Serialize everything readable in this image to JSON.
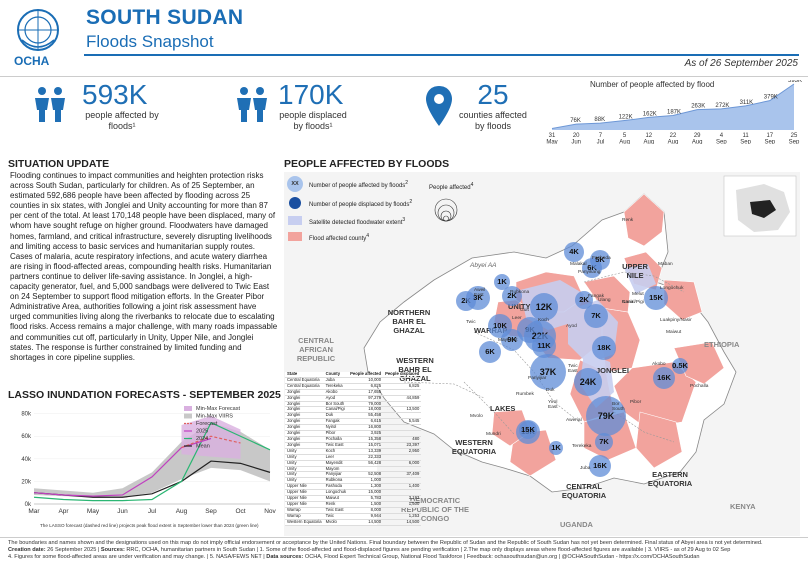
{
  "header": {
    "title": "SOUTH SUDAN",
    "subtitle": "Floods Snapshot",
    "date": "As of 26 September 2025",
    "logo_text": "OCHA"
  },
  "kpis": [
    {
      "value": "593K",
      "label": "people affected by floods¹",
      "icon": "people-icon"
    },
    {
      "value": "170K",
      "label": "people displaced by floods¹",
      "icon": "people-icon"
    },
    {
      "value": "25",
      "label": "counties affected by floods",
      "icon": "map-pin-icon"
    }
  ],
  "trend": {
    "title": "Number of people affected by flood",
    "dates": [
      "31 May",
      "20 Jun",
      "7 Jul",
      "5 Aug",
      "12 Aug",
      "22 Aug",
      "29 Aug",
      "4 Sep",
      "11 Sep",
      "17 Sep",
      "25 Sep"
    ],
    "labels": [
      "",
      "76K",
      "88K",
      "122K",
      "162K",
      "187K",
      "263K",
      "272K",
      "311K",
      "379K",
      "593K"
    ],
    "values": [
      20,
      76,
      88,
      122,
      162,
      187,
      263,
      272,
      311,
      379,
      593
    ]
  },
  "situation": {
    "title": "SITUATION UPDATE",
    "text": "Flooding continues to impact communities and heighten protection risks across South Sudan, particularly for children. As of 25 September, an estimated 592,686 people have been affected by flooding across 25 counties in six states, with Jonglei and Unity accounting for more than 87 per cent of the total. At least 170,148 people have been displaced, many of whom have sought refuge on higher ground. Floodwaters have damaged homes, farmland, and critical infrastructure, severely disrupting livelihoods and limiting access to basic services and humanitarian supply routes. Cases of malaria, acute respiratory infections, and acute watery diarrhea are rising in flood-affected areas, compounding health risks. Humanitarian partners continue to deliver life-saving assistance. In Jonglei, a high-capacity generator, fuel, and 5,000 sandbags were delivered to Twic East on 24 September to support flood mitigation efforts. In the Greater Pibor Administrative Area, authorities following a joint risk assessment have urged communities living along the riverbanks to relocate due to escalating flood risks. Access remains a major challenge, with many roads impassable and communities cut off, particularly in Unity, Upper Nile, and Jonglei states. The response is further constrained by limited funding and shortages in core pipeline supplies."
  },
  "lasso": {
    "title": "LASSO INUNDATION FORECASTS - SEPTEMBER 2025",
    "legend": [
      "Min-Max Forecast",
      "Min-Max VIIRS",
      "Forecast",
      "2025",
      "2024",
      "Mean"
    ],
    "months": [
      "Mar",
      "Apr",
      "May",
      "Jun",
      "Jul",
      "Aug",
      "Sep",
      "Oct",
      "Nov"
    ],
    "yticks": [
      "0k",
      "20k",
      "40k",
      "60k",
      "80k"
    ],
    "note": "The LASSO forecast (dashed red line) projects peak flood extent in September lower than 2024 (green line)",
    "colors": {
      "forecast": "#e06060",
      "y2025": "#c040c0",
      "y2024": "#2bb673",
      "mean": "#222222",
      "viirs": "#c8c8c8",
      "fcband": "#d9b0e0"
    }
  },
  "map": {
    "title": "PEOPLE AFFECTED BY FLOODS",
    "legend": {
      "affected": "Number of people affected by floods",
      "affected_sup": "2",
      "displaced": "Number of people displaced by floods",
      "displaced_sup": "2",
      "satellite": "Satellite detected floodwater extent",
      "satellite_sup": "3",
      "county": "Flood affected county",
      "county_sup": "4",
      "sizes": "People affected",
      "sizes_sup": "4",
      "bubble": "XX"
    },
    "countries": [
      "CENTRAL AFRICAN REPUBLIC",
      "ETHIOPIA",
      "DEMOCRATIC REPUBLIC OF THE CONGO",
      "UGANDA",
      "KENYA",
      "Abyei AA"
    ],
    "states": [
      "NORTHERN BAHR EL GHAZAL",
      "WESTERN BAHR EL GHAZAL",
      "WARRAP",
      "UNITY",
      "UPPER NILE",
      "JONGLEI",
      "LAKES",
      "WESTERN EQUATORIA",
      "CENTRAL EQUATORIA",
      "EASTERN EQUATORIA"
    ],
    "bubbles": [
      "2K",
      "3K",
      "2K",
      "12K",
      "1K",
      "4K",
      "10K",
      "9K",
      "6K",
      "7K",
      "22K",
      "37K",
      "9K",
      "11K",
      "15K",
      "0.5K",
      "16K",
      "79K",
      "15K",
      "16K",
      "7K",
      "15K",
      "6K",
      "5K",
      "2K",
      "18K",
      "24K",
      "1K"
    ],
    "places": [
      "Renk",
      "Maban",
      "Melut",
      "Longochuk",
      "Maiwut",
      "Nasir",
      "Ulang",
      "Akobo",
      "Pochalla",
      "Pibor",
      "Bor South",
      "Terekeka",
      "Juba",
      "Rubkona",
      "Guit",
      "Fangak",
      "Canal/Pigi",
      "Twic East",
      "Duk",
      "Ayod",
      "Leer",
      "Panyijiar",
      "Mayendit",
      "Koch",
      "Twic",
      "Aweil East",
      "Malakal",
      "Fashoda",
      "Panyikang",
      "Luakpiny/Nasir",
      "Yirol East",
      "Awerial",
      "Mundri",
      "Mvolo",
      "Rumbek"
    ]
  },
  "table": {
    "headers": [
      "State",
      "County",
      "People affected",
      "People displaced"
    ],
    "rows": [
      [
        "Central Equatoria",
        "Juba",
        "10,000",
        ""
      ],
      [
        "Central Equatoria",
        "Terekeka",
        "6,825",
        "6,825"
      ],
      [
        "Jonglei",
        "Akobo",
        "17,655",
        ""
      ],
      [
        "Jonglei",
        "Ayod",
        "97,279",
        "44,859"
      ],
      [
        "Jonglei",
        "Bor South",
        "79,000",
        ""
      ],
      [
        "Jonglei",
        "Canal/Pigi",
        "18,000",
        "13,500"
      ],
      [
        "Jonglei",
        "Duk",
        "55,458",
        ""
      ],
      [
        "Jonglei",
        "Fangak",
        "6,615",
        "5,545"
      ],
      [
        "Jonglei",
        "Nyirol",
        "16,800",
        ""
      ],
      [
        "Jonglei",
        "Pibor",
        "3,925",
        ""
      ],
      [
        "Jonglei",
        "Pochalla",
        "15,358",
        "480"
      ],
      [
        "Jonglei",
        "Twic East",
        "15,071",
        "23,397"
      ],
      [
        "Unity",
        "Koch",
        "13,339",
        "2,950"
      ],
      [
        "Unity",
        "Leer",
        "22,333",
        ""
      ],
      [
        "Unity",
        "Mayendit",
        "56,428",
        "6,000"
      ],
      [
        "Unity",
        "Mayom",
        "",
        ""
      ],
      [
        "Unity",
        "Panyijiar",
        "52,508",
        "37,409"
      ],
      [
        "Unity",
        "Rubkona",
        "1,000",
        ""
      ],
      [
        "Upper Nile",
        "Fashoda",
        "1,300",
        "1,400"
      ],
      [
        "Upper Nile",
        "Longochuk",
        "15,000",
        ""
      ],
      [
        "Upper Nile",
        "Maiwut",
        "5,783",
        "3,193"
      ],
      [
        "Upper Nile",
        "Renk",
        "1,500",
        "1,500"
      ],
      [
        "Warrap",
        "Twic East",
        "8,000",
        ""
      ],
      [
        "Warrap",
        "Twic",
        "9,944",
        "1,253"
      ],
      [
        "Western Equatoria",
        "Mvolo",
        "14,500",
        "14,500"
      ]
    ]
  },
  "footer": {
    "line1": "The boundaries and names shown and the designations used on this map do not imply official endorsement or acceptance by the United Nations. Final boundary between the Republic of Sudan and the Republic of South Sudan has not yet been determined. Final status of Abyei area is not yet determined.",
    "creation_label": "Creation date:",
    "creation": "26 September 2025",
    "sources_label": "Sources:",
    "sources": "RRC, OCHA, humanitarian partners in South Sudan",
    "notes": "1. Some of the flood-affected and flood-displaced figures are pending verification  |  2.The map only displays areas where flood-affected figures are available  |  3. VIIRS - as of 29 Aug to 02 Sep",
    "line3a": "4. Figures for some flood-affected areas are under verification and may change.  |  5. NASA/FEWS NET",
    "datasrc_label": "Data sources:",
    "datasrc": "OCHA, Flood Expert Technical Group, National Flood Taskforce",
    "contact": "|  Feedback: ochasouthsudan@un.org  |  @OCHASouthSudan - https://x.com/OCHASouthSudan"
  }
}
